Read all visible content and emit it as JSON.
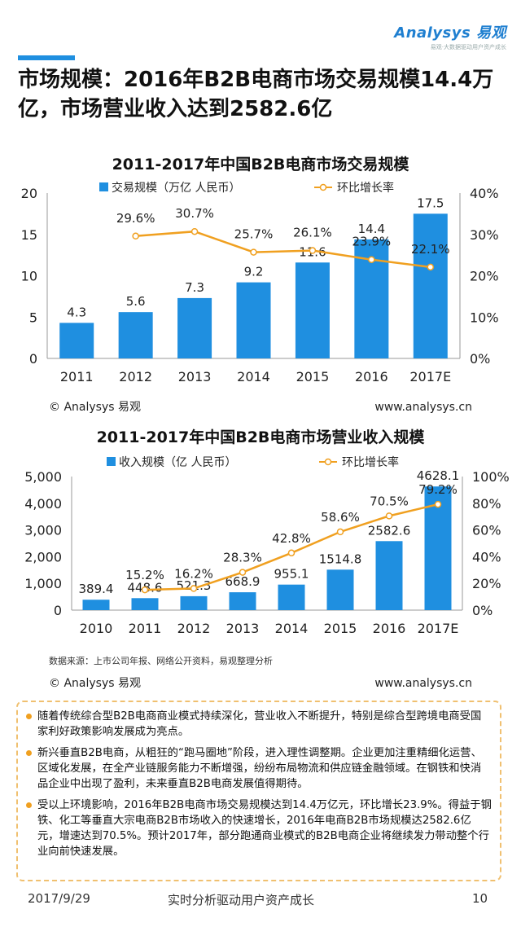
{
  "logo": {
    "brand": "Analysys 易观",
    "tagline": "易观·大数据驱动用户资产成长"
  },
  "page_title": "市场规模：2016年B2B电商市场交易规模14.4万亿，市场营业收入达到2582.6亿",
  "colors": {
    "bar": "#1f8fe0",
    "line": "#f0a020",
    "accent": "#1f8fe0"
  },
  "chart_data": [
    {
      "type": "bar",
      "title": "2011-2017年中国B2B电商市场交易规模",
      "categories": [
        "2011",
        "2012",
        "2013",
        "2014",
        "2015",
        "2016",
        "2017E"
      ],
      "series": [
        {
          "name": "交易规模（万亿 人民币）",
          "type": "bar",
          "axis": "left",
          "values": [
            4.3,
            5.6,
            7.3,
            9.2,
            11.6,
            14.4,
            17.5
          ],
          "labels": [
            "4.3",
            "5.6",
            "7.3",
            "9.2",
            "11.6",
            "14.4",
            "17.5"
          ]
        },
        {
          "name": "环比增长率",
          "type": "line",
          "axis": "right",
          "values": [
            null,
            29.6,
            30.7,
            25.7,
            26.1,
            23.9,
            22.1
          ],
          "labels": [
            "",
            "29.6%",
            "30.7%",
            "25.7%",
            "26.1%",
            "23.9%",
            "22.1%"
          ]
        }
      ],
      "left_axis": {
        "range": [
          0,
          20
        ],
        "ticks": [
          "0",
          "5",
          "10",
          "15",
          "20"
        ]
      },
      "right_axis": {
        "range": [
          0,
          40
        ],
        "ticks": [
          "0%",
          "10%",
          "20%",
          "30%",
          "40%"
        ]
      },
      "source": "© Analysys 易观",
      "website": "www.analysys.cn"
    },
    {
      "type": "bar",
      "title": "2011-2017年中国B2B电商市场营业收入规模",
      "categories": [
        "2010",
        "2011",
        "2012",
        "2013",
        "2014",
        "2015",
        "2016",
        "2017E"
      ],
      "series": [
        {
          "name": "收入规模（亿 人民币）",
          "type": "bar",
          "axis": "left",
          "values": [
            389.4,
            448.6,
            521.3,
            668.9,
            955.1,
            1514.8,
            2582.6,
            4628.1
          ],
          "labels": [
            "389.4",
            "448.6",
            "521.3",
            "668.9",
            "955.1",
            "1514.8",
            "2582.6",
            "4628.1"
          ]
        },
        {
          "name": "环比增长率",
          "type": "line",
          "axis": "right",
          "values": [
            null,
            15.2,
            16.2,
            28.3,
            42.8,
            58.6,
            70.5,
            79.2
          ],
          "labels": [
            "",
            "15.2%",
            "16.2%",
            "28.3%",
            "42.8%",
            "58.6%",
            "70.5%",
            "79.2%"
          ]
        }
      ],
      "left_axis": {
        "range": [
          0,
          5000
        ],
        "ticks": [
          "0",
          "1,000",
          "2,000",
          "3,000",
          "4,000",
          "5,000"
        ]
      },
      "right_axis": {
        "range": [
          0,
          100
        ],
        "ticks": [
          "0%",
          "20%",
          "40%",
          "60%",
          "80%",
          "100%"
        ]
      },
      "data_source": "数据来源：上市公司年报、网络公开资料，易观整理分析",
      "source": "© Analysys 易观",
      "website": "www.analysys.cn"
    }
  ],
  "notes": [
    "随着传统综合型B2B电商商业模式持续深化，营业收入不断提升，特别是综合型跨境电商受国家利好政策影响发展成为亮点。",
    "新兴垂直B2B电商，从粗狂的“跑马圈地”阶段，进入理性调整期。企业更加注重精细化运营、区域化发展，在全产业链服务能力不断增强，纷纷布局物流和供应链金融领域。在钢铁和快消品企业中出现了盈利，未来垂直B2B电商发展值得期待。",
    "受以上环境影响，2016年B2B电商市场交易规模达到14.4万亿元，环比增长23.9%。得益于钢铁、化工等垂直大宗电商B2B市场收入的快速增长，2016年电商B2B市场规模达2582.6亿元，增速达到70.5%。预计2017年，部分跑通商业模式的B2B电商企业将继续发力带动整个行业向前快速发展。"
  ],
  "footer": {
    "date": "2017/9/29",
    "slogan": "实时分析驱动用户资产成长",
    "page": "10"
  }
}
